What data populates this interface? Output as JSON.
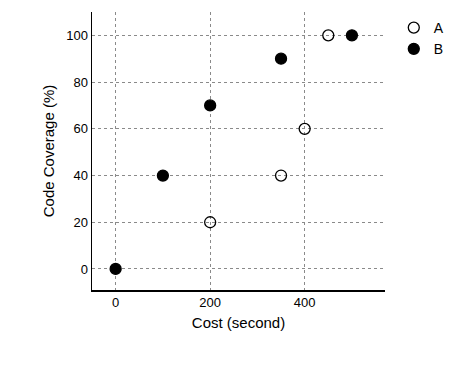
{
  "chart_data": {
    "type": "scatter",
    "x_label": "Cost (second)",
    "y_label": "Code Coverage (%)",
    "series": [
      {
        "name": "A",
        "color": "#000000",
        "marker": "open",
        "x": [
          200,
          350,
          400,
          450
        ],
        "values": [
          20,
          40,
          60,
          100
        ]
      },
      {
        "name": "B",
        "color": "#000000",
        "marker": "filled",
        "x": [
          0,
          100,
          200,
          350,
          500
        ],
        "values": [
          0,
          40,
          70,
          90,
          100
        ]
      }
    ],
    "xlim": [
      -50,
      570
    ],
    "xticks": [
      0,
      200,
      400
    ],
    "ylim": [
      -9,
      110
    ],
    "yticks": [
      0,
      20,
      40,
      60,
      80,
      100
    ],
    "grid": true,
    "legend": "upper right"
  }
}
